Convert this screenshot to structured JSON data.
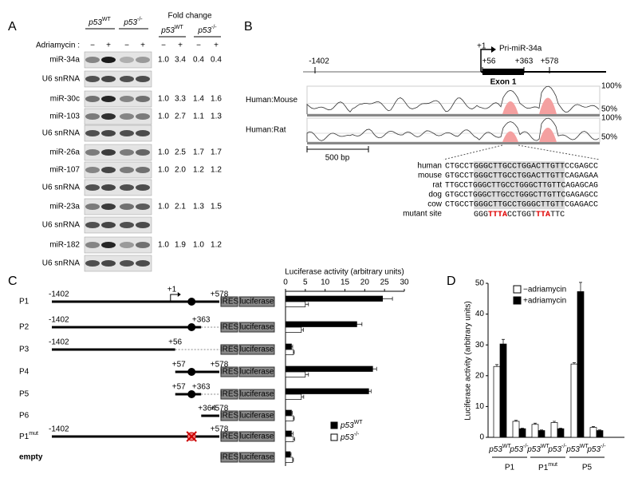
{
  "panel_a": {
    "label": "A",
    "fold_change_header": "Fold change",
    "treatment_label": "Adriamycin :",
    "minus": "−",
    "plus": "+",
    "lane_groups": [
      {
        "base": "p53",
        "sup": "WT"
      },
      {
        "base": "p53",
        "sup": "-/-"
      }
    ],
    "rows": [
      {
        "name": "miR-34a",
        "fold": [
          "1.0",
          "3.4",
          "0.4",
          "0.4"
        ]
      },
      {
        "name": "U6 snRNA"
      },
      {
        "name": "miR-30c",
        "fold": [
          "1.0",
          "3.3",
          "1.4",
          "1.6"
        ]
      },
      {
        "name": "miR-103",
        "fold": [
          "1.0",
          "2.7",
          "1.1",
          "1.3"
        ]
      },
      {
        "name": "U6 snRNA"
      },
      {
        "name": "miR-26a",
        "fold": [
          "1.0",
          "2.5",
          "1.7",
          "1.7"
        ]
      },
      {
        "name": "miR-107",
        "fold": [
          "1.0",
          "2.0",
          "1.2",
          "1.2"
        ]
      },
      {
        "name": "U6 snRNA"
      },
      {
        "name": "miR-23a",
        "fold": [
          "1.0",
          "2.1",
          "1.3",
          "1.5"
        ]
      },
      {
        "name": "U6 snRNA"
      },
      {
        "name": "miR-182",
        "fold": [
          "1.0",
          "1.9",
          "1.0",
          "1.2"
        ]
      },
      {
        "name": "U6 snRNA"
      }
    ]
  },
  "panel_b": {
    "label": "B",
    "tss": "+1",
    "transcript": "Pri-miR-34a",
    "positions": [
      "-1402",
      "+56",
      "+363",
      "+578"
    ],
    "exon": "Exon 1",
    "tracks": [
      {
        "name": "Human:Mouse",
        "top": "100%",
        "mid": "50%"
      },
      {
        "name": "Human:Rat",
        "top": "100%",
        "mid": "50%"
      }
    ],
    "scale_bar": "500 bp",
    "alignment": [
      {
        "species": "human",
        "sequence": "CTGCCTGGGCTTGCCTGGACTTGTTCCGAGCC"
      },
      {
        "species": "mouse",
        "sequence": "GTGCCTGGGCTTGCCTGGACTTGTTCAGAGAA"
      },
      {
        "species": "rat",
        "sequence": "TTGCCTGGGCTTGCCTGGGCTTGTTCAGAGCAG"
      },
      {
        "species": "dog",
        "sequence": "GTGCCTGGGCTTGCCTGGGCTTGTTCGAGAGCC"
      },
      {
        "species": "cow",
        "sequence": "CTGCCTGGGCTTGCCTGGGCTTGTTCGAGACC"
      }
    ],
    "mutant_label": "mutant site",
    "mutant": [
      {
        "text": "GGG",
        "color": "#000000"
      },
      {
        "text": "TTTA",
        "color": "#e00000"
      },
      {
        "text": "CCTGGT",
        "color": "#000000"
      },
      {
        "text": "TTA",
        "color": "#e00000"
      },
      {
        "text": "TTC",
        "color": "#000000"
      }
    ]
  },
  "constructs": {
    "reporter": {
      "ires": "IRES",
      "luc": "luciferase"
    },
    "items": [
      {
        "name": "P1",
        "start": "-1402",
        "tss": "+1",
        "end": "+578"
      },
      {
        "name": "P2",
        "start": "-1402",
        "end": "+363"
      },
      {
        "name": "P3",
        "start": "-1402",
        "end": "+56"
      },
      {
        "name": "P4",
        "start": "+57",
        "end": "+578"
      },
      {
        "name": "P5",
        "start": "+57",
        "end": "+363"
      },
      {
        "name": "P6",
        "start": "+364",
        "end": "+578"
      },
      {
        "name": "P1",
        "sup": "mut",
        "start": "-1402",
        "end": "+578"
      },
      {
        "name": "empty"
      }
    ]
  },
  "chart_data": [
    {
      "type": "bar",
      "orientation": "horizontal",
      "panel_label": "C",
      "title": "Luciferase activity (arbitrary units)",
      "xlim": [
        0,
        30
      ],
      "xticks": [
        0,
        5,
        10,
        15,
        20,
        25,
        30
      ],
      "series": [
        {
          "name": "p53",
          "name_sup": "WT",
          "color": "#000000",
          "values": [
            24.5,
            18,
            1.5,
            22,
            21,
            1.5,
            1.5,
            1.2
          ],
          "errors": [
            2.5,
            1.3,
            0.3,
            1,
            0.6,
            0.2,
            0.4,
            0.2
          ]
        },
        {
          "name": "p53",
          "name_sup": "-/-",
          "color": "#ffffff",
          "values": [
            5,
            4,
            2,
            5,
            4,
            2,
            2,
            1.8
          ],
          "errors": [
            0.8,
            0.5,
            0.2,
            0.8,
            0.6,
            0.2,
            0.3,
            0.2
          ]
        }
      ]
    },
    {
      "type": "bar",
      "panel_label": "D",
      "ylabel": "Luciferase activity (arbitrary units)",
      "ylim": [
        0,
        50
      ],
      "yticks": [
        0,
        10,
        20,
        30,
        40,
        50
      ],
      "legend": "upper-left",
      "categories": [
        "p53",
        "p53",
        "p53",
        "p53",
        "p53",
        "p53"
      ],
      "category_sups": [
        "WT",
        "-/-",
        "WT",
        "-/-",
        "WT",
        "-/-"
      ],
      "groups": [
        {
          "name": "P1"
        },
        {
          "name": "P1",
          "sup": "mut"
        },
        {
          "name": "P5"
        }
      ],
      "series": [
        {
          "name": "−adriamycin",
          "color": "#ffffff",
          "values": [
            23,
            5.2,
            4.2,
            4.8,
            23.8,
            3.2
          ],
          "errors": [
            0.6,
            0.3,
            0.4,
            0.4,
            0.4,
            0.3
          ]
        },
        {
          "name": "+adriamycin",
          "color": "#000000",
          "values": [
            30.3,
            2.8,
            2.2,
            2.8,
            47.3,
            2.2
          ],
          "errors": [
            1.5,
            0.2,
            0.2,
            0.2,
            3,
            0.2
          ]
        }
      ]
    }
  ]
}
